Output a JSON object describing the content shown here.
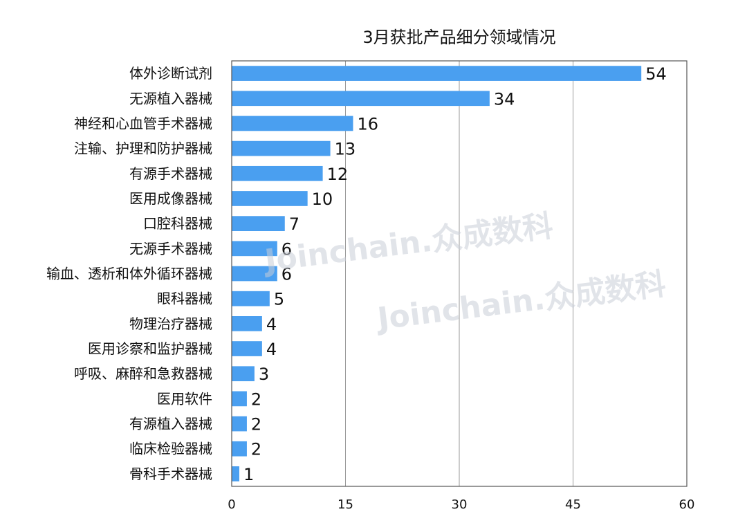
{
  "watermark": "Joinchain.众成数科",
  "chart_data": {
    "type": "bar",
    "orientation": "horizontal",
    "title": "3月获批产品细分领域情况",
    "categories": [
      "体外诊断试剂",
      "无源植入器械",
      "神经和心血管手术器械",
      "注输、护理和防护器械",
      "有源手术器械",
      "医用成像器械",
      "口腔科器械",
      "无源手术器械",
      "输血、透析和体外循环器械",
      "眼科器械",
      "物理治疗器械",
      "医用诊察和监护器械",
      "呼吸、麻醉和急救器械",
      "医用软件",
      "有源植入器械",
      "临床检验器械",
      "骨科手术器械"
    ],
    "values": [
      54,
      34,
      16,
      13,
      12,
      10,
      7,
      6,
      6,
      5,
      4,
      4,
      3,
      2,
      2,
      2,
      1
    ],
    "xlim": [
      0,
      60
    ],
    "xticks": [
      0,
      15,
      30,
      45,
      60
    ],
    "grid": true,
    "bar_color": "#4a9ff0",
    "legend": "none"
  }
}
